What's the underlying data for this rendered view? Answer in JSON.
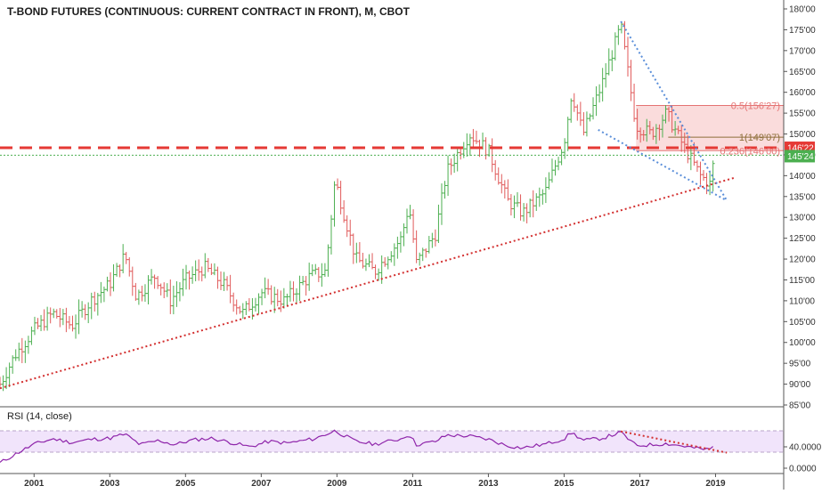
{
  "chart_data": {
    "type": "ohlc",
    "title": "T-BOND FUTURES (CONTINUOUS: CURRENT CONTRACT IN FRONT), M, CBOT",
    "colors": {
      "up": "#4caf50",
      "down": "#e05a5a",
      "level": "#e53935",
      "trend": "#d32f2f",
      "wedge": "#5b8fd9",
      "rsi": "#8e24aa",
      "rsi_band": "#f1e4fb",
      "fib_05": "#e57373",
      "fib_1": "#8d6e3a",
      "fib_0236": "#e57373",
      "current": "#4caf50"
    },
    "y_axis": {
      "min": 85,
      "max": 180,
      "ticks": [
        "180'00",
        "175'00",
        "170'00",
        "165'00",
        "160'00",
        "155'00",
        "150'00",
        "145'00",
        "140'00",
        "135'00",
        "130'00",
        "125'00",
        "120'00",
        "115'00",
        "110'00",
        "105'00",
        "100'00",
        "95'00",
        "90'00",
        "85'00"
      ]
    },
    "x_axis": {
      "ticks": [
        {
          "label": "2001",
          "t": 2001.0
        },
        {
          "label": "2003",
          "t": 2003.0
        },
        {
          "label": "2005",
          "t": 2005.0
        },
        {
          "label": "2007",
          "t": 2007.0
        },
        {
          "label": "2009",
          "t": 2009.0
        },
        {
          "label": "2011",
          "t": 2011.0
        },
        {
          "label": "2013",
          "t": 2013.0
        },
        {
          "label": "2015",
          "t": 2015.0
        },
        {
          "label": "2017",
          "t": 2017.0
        },
        {
          "label": "2019",
          "t": 2019.0
        }
      ],
      "range": [
        2000.1,
        2020.8
      ]
    },
    "price_anchors": [
      [
        2000.1,
        90
      ],
      [
        2000.5,
        97
      ],
      [
        2001.0,
        103
      ],
      [
        2001.5,
        107
      ],
      [
        2002.0,
        104
      ],
      [
        2002.5,
        110
      ],
      [
        2003.0,
        114
      ],
      [
        2003.4,
        121
      ],
      [
        2003.7,
        111
      ],
      [
        2004.2,
        116
      ],
      [
        2004.6,
        110
      ],
      [
        2005.0,
        115
      ],
      [
        2005.5,
        118
      ],
      [
        2006.0,
        114
      ],
      [
        2006.5,
        107
      ],
      [
        2007.0,
        112
      ],
      [
        2007.6,
        110
      ],
      [
        2008.3,
        116
      ],
      [
        2008.7,
        117
      ],
      [
        2008.95,
        139
      ],
      [
        2009.5,
        120
      ],
      [
        2010.0,
        117
      ],
      [
        2010.7,
        125
      ],
      [
        2010.9,
        133
      ],
      [
        2011.1,
        119
      ],
      [
        2011.6,
        126
      ],
      [
        2011.9,
        141
      ],
      [
        2012.5,
        150
      ],
      [
        2013.0,
        146
      ],
      [
        2013.5,
        134
      ],
      [
        2013.9,
        131
      ],
      [
        2014.5,
        136
      ],
      [
        2015.0,
        148
      ],
      [
        2015.2,
        160
      ],
      [
        2015.5,
        150
      ],
      [
        2016.0,
        162
      ],
      [
        2016.5,
        176
      ],
      [
        2016.9,
        152
      ],
      [
        2017.3,
        150
      ],
      [
        2017.7,
        155
      ],
      [
        2018.1,
        148
      ],
      [
        2018.6,
        140
      ],
      [
        2018.85,
        138
      ],
      [
        2019.0,
        145.75
      ]
    ],
    "support_levels": [
      {
        "price": 146.6875,
        "label": "146'22",
        "style": "dashed"
      }
    ],
    "current_price": {
      "price": 145.75,
      "label": "145'24"
    },
    "fibonacci": [
      {
        "ratio": "0.5",
        "price": 156.84,
        "label": "0.5(156'27)"
      },
      {
        "ratio": "1",
        "price": 149.22,
        "label": "1(149'07)"
      },
      {
        "ratio": "0.236",
        "price": 146.0,
        "label": "0.236(146'00)"
      }
    ],
    "trendlines": [
      {
        "name": "long-term support",
        "from": [
          2000.1,
          89
        ],
        "to": [
          2019.5,
          139.5
        ]
      },
      {
        "name": "wedge upper",
        "from": [
          2016.5,
          177
        ],
        "to": [
          2019.3,
          134
        ]
      },
      {
        "name": "wedge lower",
        "from": [
          2015.9,
          151
        ],
        "to": [
          2019.3,
          134
        ]
      }
    ],
    "rsi": {
      "title": "RSI (14, close)",
      "ticks": [
        "40.0000",
        "0.0000"
      ],
      "upper_band": 70,
      "lower_band": 30,
      "anchors": [
        [
          2000.1,
          10
        ],
        [
          2000.6,
          30
        ],
        [
          2001.0,
          45
        ],
        [
          2001.5,
          55
        ],
        [
          2002.0,
          48
        ],
        [
          2002.5,
          54
        ],
        [
          2003.0,
          56
        ],
        [
          2003.4,
          64
        ],
        [
          2003.8,
          44
        ],
        [
          2004.3,
          52
        ],
        [
          2004.7,
          44
        ],
        [
          2005.2,
          53
        ],
        [
          2005.7,
          56
        ],
        [
          2006.2,
          48
        ],
        [
          2006.7,
          40
        ],
        [
          2007.2,
          50
        ],
        [
          2007.7,
          47
        ],
        [
          2008.4,
          55
        ],
        [
          2008.95,
          70
        ],
        [
          2009.5,
          50
        ],
        [
          2010.0,
          45
        ],
        [
          2010.7,
          55
        ],
        [
          2010.9,
          64
        ],
        [
          2011.1,
          44
        ],
        [
          2011.6,
          50
        ],
        [
          2011.9,
          62
        ],
        [
          2012.5,
          60
        ],
        [
          2013.0,
          54
        ],
        [
          2013.5,
          42
        ],
        [
          2013.9,
          38
        ],
        [
          2014.5,
          45
        ],
        [
          2015.0,
          55
        ],
        [
          2015.2,
          67
        ],
        [
          2015.5,
          52
        ],
        [
          2016.0,
          56
        ],
        [
          2016.5,
          67
        ],
        [
          2016.9,
          42
        ],
        [
          2017.3,
          44
        ],
        [
          2017.7,
          46
        ],
        [
          2018.1,
          42
        ],
        [
          2018.6,
          36
        ],
        [
          2018.85,
          35
        ],
        [
          2019.0,
          45
        ]
      ],
      "trendline": {
        "from": [
          2016.5,
          69
        ],
        "to": [
          2019.3,
          29
        ]
      }
    }
  }
}
